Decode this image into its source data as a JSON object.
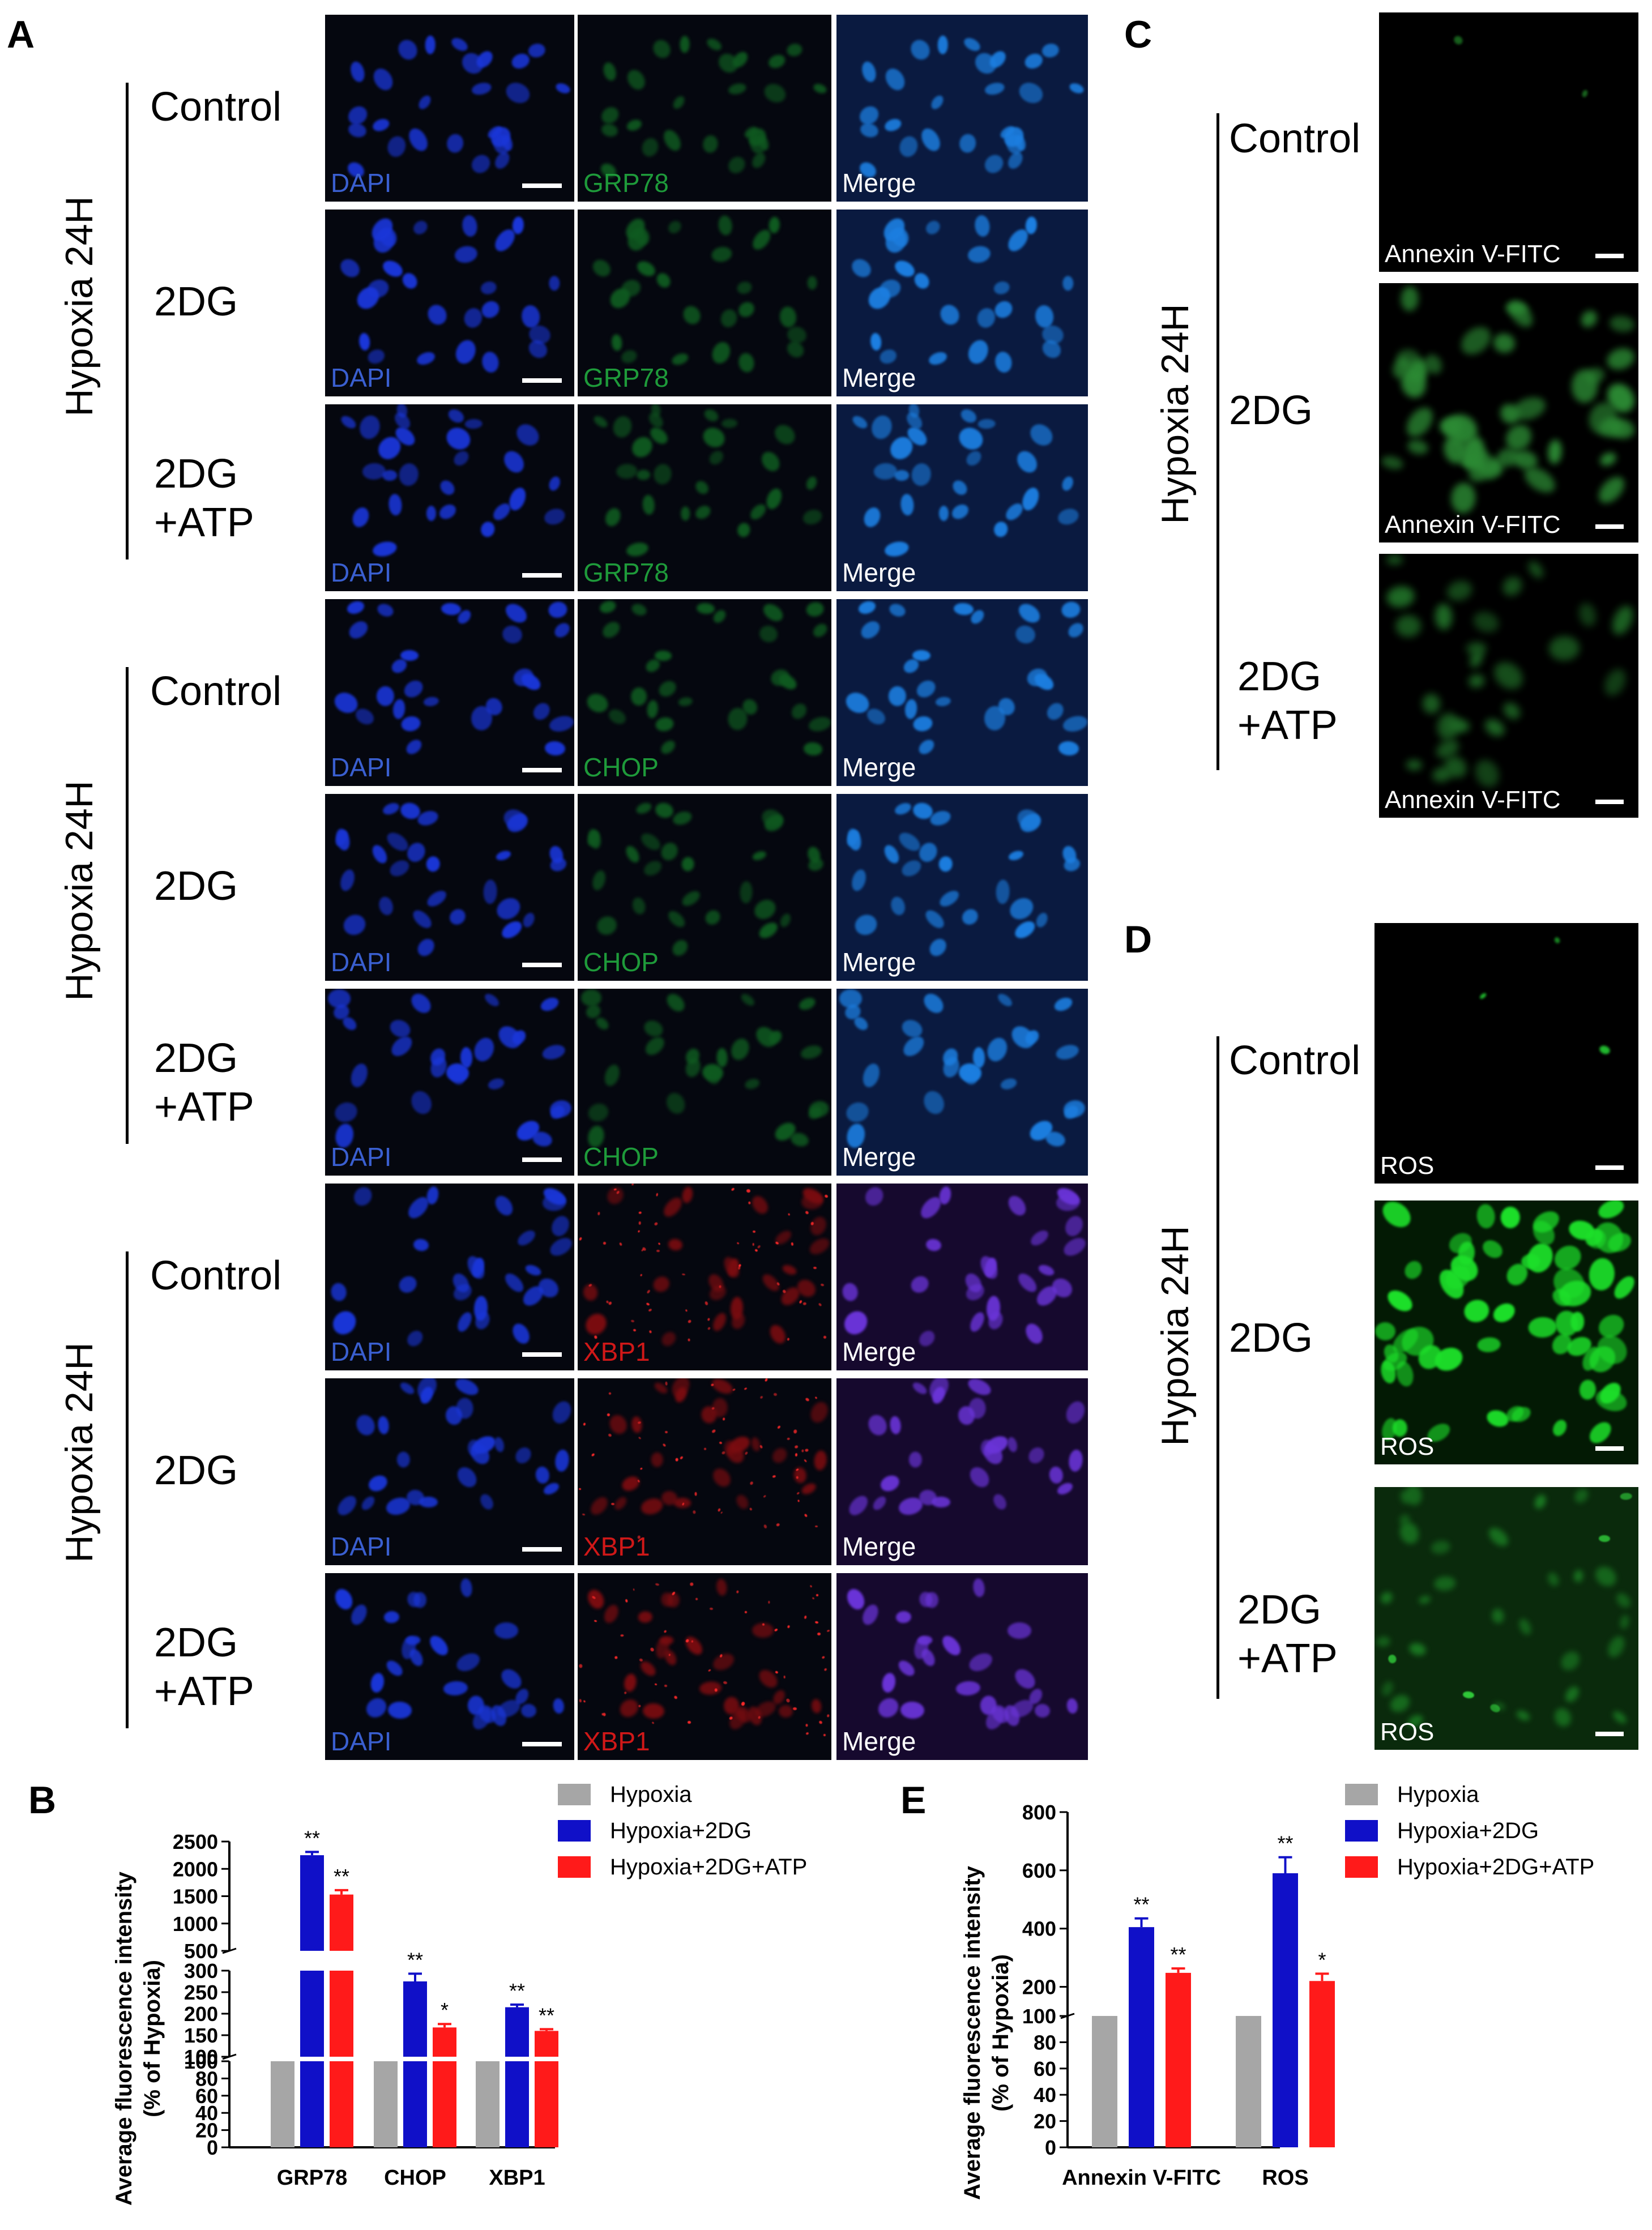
{
  "panel_letters": {
    "a": "A",
    "b": "B",
    "c": "C",
    "d": "D",
    "e": "E"
  },
  "group_label": "Hypoxia 24H",
  "conditions": [
    "Control",
    "2DG",
    "2DG\n+ATP"
  ],
  "panel_a": {
    "groups": [
      {
        "marker": "GRP78",
        "marker_color": "#1e9a3a",
        "merge_tint": "#0a1a40"
      },
      {
        "marker": "CHOP",
        "marker_color": "#1e9a3a",
        "merge_tint": "#0a1a40"
      },
      {
        "marker": "XBP1",
        "marker_color": "#d01818",
        "merge_tint": "#16092e"
      }
    ],
    "channel_labels": {
      "dapi": "DAPI",
      "merge": "Merge"
    },
    "dapi_color": "#3a5fd0"
  },
  "panel_c": {
    "label": "Annexin V-FITC"
  },
  "panel_d": {
    "label": "ROS"
  },
  "chart_data": [
    {
      "panel": "B",
      "type": "bar",
      "categories": [
        "GRP78",
        "CHOP",
        "XBP1"
      ],
      "ylabel": "Average fluorescence intensity\n(% of Hypoxia)",
      "axis_break": true,
      "segments": [
        {
          "range": [
            0,
            100
          ],
          "ticks": [
            0,
            20,
            40,
            60,
            80,
            100
          ]
        },
        {
          "range": [
            100,
            300
          ],
          "ticks": [
            100,
            150,
            200,
            250,
            300
          ]
        },
        {
          "range": [
            500,
            2500
          ],
          "ticks": [
            500,
            1000,
            1500,
            2000,
            2500
          ]
        }
      ],
      "series": [
        {
          "name": "Hypoxia",
          "color": "#a6a6a6",
          "values": [
            100,
            100,
            100
          ],
          "err": [
            0,
            0,
            0
          ],
          "sig": [
            "",
            "",
            ""
          ]
        },
        {
          "name": "Hypoxia+2DG",
          "color": "#1010c8",
          "values": [
            2250,
            275,
            215
          ],
          "err": [
            60,
            18,
            6
          ],
          "sig": [
            "**",
            "**",
            "**"
          ]
        },
        {
          "name": "Hypoxia+2DG+ATP",
          "color": "#ff1a1a",
          "values": [
            1530,
            168,
            160
          ],
          "err": [
            80,
            8,
            4
          ],
          "sig": [
            "**",
            "*",
            "**"
          ]
        }
      ]
    },
    {
      "panel": "E",
      "type": "bar",
      "categories": [
        "Annexin V-FITC",
        "ROS"
      ],
      "ylabel": "Average fluorescence intensity\n(% of Hypoxia)",
      "axis_break": true,
      "segments": [
        {
          "range": [
            0,
            100
          ],
          "ticks": [
            0,
            20,
            40,
            60,
            80,
            100
          ]
        },
        {
          "range": [
            100,
            800
          ],
          "ticks": [
            200,
            400,
            600,
            800
          ]
        }
      ],
      "series": [
        {
          "name": "Hypoxia",
          "color": "#a6a6a6",
          "values": [
            100,
            100
          ],
          "err": [
            0,
            0
          ],
          "sig": [
            "",
            ""
          ]
        },
        {
          "name": "Hypoxia+2DG",
          "color": "#1010c8",
          "values": [
            405,
            590
          ],
          "err": [
            30,
            55
          ],
          "sig": [
            "**",
            "**"
          ]
        },
        {
          "name": "Hypoxia+2DG+ATP",
          "color": "#ff1a1a",
          "values": [
            248,
            220
          ],
          "err": [
            15,
            25
          ],
          "sig": [
            "**",
            "*"
          ]
        }
      ]
    }
  ]
}
